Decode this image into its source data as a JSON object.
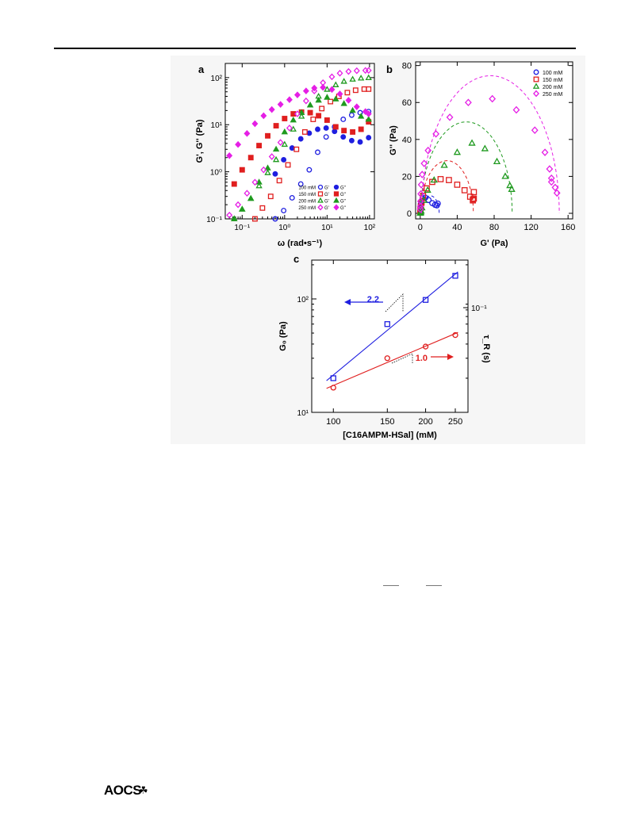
{
  "footer": {
    "publisher": "AOCS",
    "publisher_mark": "☘"
  },
  "colors": {
    "100 mM": "#1f1fe0",
    "150 mM": "#e01f1f",
    "200 mM": "#1f9a1f",
    "250 mM": "#e51fe5"
  },
  "chart_data": [
    {
      "panel_label": "a",
      "type": "scatter",
      "xlabel": "ω (rad•s⁻¹)",
      "ylabel": "G', G'' (Pa)",
      "xscale": "log",
      "yscale": "log",
      "xlim": [
        0.04,
        130
      ],
      "ylim": [
        0.1,
        200
      ],
      "xticks": [
        "10⁻¹",
        "10⁰",
        "10¹",
        "10²"
      ],
      "yticks": [
        "10⁻¹",
        "10⁰",
        "10¹",
        "10²"
      ],
      "legend_placement": "bottom-right",
      "legend_headers": [
        "",
        "G'",
        "G''"
      ],
      "series": [
        {
          "name": "100 mM",
          "color": "#1f1fe0",
          "gprime": {
            "x": [
              0.6,
              0.95,
              1.5,
              2.4,
              3.8,
              6,
              9.5,
              15,
              24,
              38,
              60,
              95
            ],
            "y": [
              0.1,
              0.15,
              0.28,
              0.55,
              1.1,
              2.6,
              5.5,
              9,
              13,
              16,
              18,
              19
            ]
          },
          "gdprime": {
            "x": [
              0.6,
              0.95,
              1.5,
              2.4,
              3.8,
              6,
              9.5,
              15,
              24,
              38,
              60,
              95
            ],
            "y": [
              0.9,
              1.8,
              3.2,
              5,
              6.6,
              8,
              8.5,
              7.2,
              5.5,
              4.6,
              4.3,
              5.3
            ]
          }
        },
        {
          "name": "150 mM",
          "color": "#e01f1f",
          "gprime": {
            "x": [
              0.2,
              0.3,
              0.47,
              0.75,
              1.2,
              1.9,
              3,
              4.7,
              7.5,
              12,
              19,
              30,
              47,
              75,
              95
            ],
            "y": [
              0.1,
              0.17,
              0.3,
              0.65,
              1.4,
              3,
              7,
              13,
              22,
              31,
              40,
              48,
              54,
              57,
              57
            ]
          },
          "gdprime": {
            "x": [
              0.065,
              0.1,
              0.16,
              0.25,
              0.4,
              0.63,
              1,
              1.6,
              2.5,
              4,
              6.3,
              10,
              16,
              25,
              40,
              63,
              95
            ],
            "y": [
              0.55,
              1.1,
              2,
              3.6,
              5.8,
              9.5,
              13.5,
              17,
              18.5,
              18,
              15.5,
              12.5,
              9,
              7.5,
              7,
              8,
              11.5
            ]
          }
        },
        {
          "name": "200 mM",
          "color": "#1f9a1f",
          "gprime": {
            "x": [
              0.065,
              0.1,
              0.16,
              0.25,
              0.4,
              0.63,
              1,
              1.6,
              2.5,
              4,
              6.3,
              10,
              16,
              25,
              40,
              63,
              95
            ],
            "y": [
              0.1,
              0.16,
              0.27,
              0.5,
              0.95,
              1.8,
              3.8,
              8,
              15,
              26,
              40,
              56,
              70,
              83,
              92,
              97,
              99
            ]
          },
          "gdprime": {
            "x": [
              0.065,
              0.1,
              0.16,
              0.25,
              0.4,
              0.63,
              1,
              1.6,
              2.5,
              4,
              6.3,
              10,
              16,
              25,
              40,
              63,
              95
            ],
            "y": [
              0.1,
              0.16,
              0.27,
              0.6,
              1.2,
              3,
              7,
              12.5,
              18,
              26,
              33,
              38,
              35,
              28,
              20,
              15,
              13
            ]
          }
        },
        {
          "name": "250 mM",
          "color": "#e51fe5",
          "gprime": {
            "x": [
              0.05,
              0.08,
              0.13,
              0.2,
              0.32,
              0.5,
              0.8,
              1.3,
              2,
              3.2,
              5,
              8,
              13,
              20,
              32,
              50,
              80,
              95
            ],
            "y": [
              0.12,
              0.2,
              0.35,
              0.6,
              1.1,
              2.1,
              4.2,
              8.5,
              17,
              32,
              52,
              78,
              104,
              124,
              135,
              140,
              142,
              142
            ]
          },
          "gdprime": {
            "x": [
              0.05,
              0.08,
              0.13,
              0.2,
              0.32,
              0.5,
              0.8,
              1.3,
              2,
              3.2,
              5,
              8,
              13,
              20,
              32,
              50,
              80,
              95
            ],
            "y": [
              2.2,
              3.8,
              6.5,
              10.5,
              15.5,
              21,
              27,
              34,
              43,
              52,
              60,
              62,
              56,
              45,
              33,
              24,
              19,
              17
            ]
          }
        }
      ]
    },
    {
      "panel_label": "b",
      "type": "scatter",
      "xlabel": "G' (Pa)",
      "ylabel": "G'' (Pa)",
      "xlim": [
        -5,
        165
      ],
      "ylim": [
        -3,
        82
      ],
      "xticks": [
        0,
        40,
        80,
        120,
        160
      ],
      "yticks": [
        0,
        20,
        40,
        60,
        80
      ],
      "legend_placement": "top-right",
      "series": [
        {
          "name": "100 mM",
          "color": "#1f1fe0",
          "marker": "circle",
          "fit_center": 11,
          "fit_radius": 9.5,
          "points": [
            [
              0.1,
              0.9
            ],
            [
              0.15,
              1.8
            ],
            [
              0.3,
              3.2
            ],
            [
              0.6,
              5
            ],
            [
              1.2,
              6.6
            ],
            [
              2.6,
              8
            ],
            [
              5.5,
              8.5
            ],
            [
              9,
              7.2
            ],
            [
              13,
              5.5
            ],
            [
              16,
              4.6
            ],
            [
              18,
              4.3
            ],
            [
              19,
              5.3
            ]
          ]
        },
        {
          "name": "150 mM",
          "color": "#e01f1f",
          "marker": "square",
          "fit_center": 29,
          "fit_radius": 28.5,
          "points": [
            [
              0.1,
              0.55
            ],
            [
              0.2,
              1.1
            ],
            [
              0.3,
              2
            ],
            [
              0.65,
              3.6
            ],
            [
              1.4,
              5.8
            ],
            [
              3,
              9.5
            ],
            [
              7,
              13.5
            ],
            [
              13,
              17
            ],
            [
              22,
              18.5
            ],
            [
              31,
              18
            ],
            [
              40,
              15.5
            ],
            [
              48,
              12.5
            ],
            [
              54,
              9
            ],
            [
              57,
              7.5
            ],
            [
              57,
              7
            ],
            [
              58,
              8
            ],
            [
              58,
              11.5
            ]
          ]
        },
        {
          "name": "200 mM",
          "color": "#1f9a1f",
          "marker": "triangle",
          "fit_center": 50,
          "fit_radius": 49.5,
          "points": [
            [
              0.1,
              0.1
            ],
            [
              0.16,
              0.16
            ],
            [
              0.27,
              0.27
            ],
            [
              0.5,
              0.6
            ],
            [
              0.95,
              1.2
            ],
            [
              1.8,
              3
            ],
            [
              3.8,
              7
            ],
            [
              8,
              12.5
            ],
            [
              15,
              18
            ],
            [
              26,
              26
            ],
            [
              40,
              33
            ],
            [
              56,
              38
            ],
            [
              70,
              35
            ],
            [
              83,
              28
            ],
            [
              92,
              20
            ],
            [
              97,
              15
            ],
            [
              99,
              13
            ]
          ]
        },
        {
          "name": "250 mM",
          "color": "#e51fe5",
          "marker": "diamond",
          "fit_center": 76,
          "fit_radius": 74.5,
          "points": [
            [
              0.12,
              2.2
            ],
            [
              0.2,
              3.8
            ],
            [
              0.35,
              6.5
            ],
            [
              0.6,
              10.5
            ],
            [
              1.1,
              15.5
            ],
            [
              2.1,
              21
            ],
            [
              4.2,
              27
            ],
            [
              8.5,
              34
            ],
            [
              17,
              43
            ],
            [
              32,
              52
            ],
            [
              52,
              60
            ],
            [
              78,
              62
            ],
            [
              104,
              56
            ],
            [
              124,
              45
            ],
            [
              135,
              33
            ],
            [
              140,
              24
            ],
            [
              142,
              19
            ],
            [
              142,
              17
            ],
            [
              146,
              14
            ],
            [
              148,
              11
            ]
          ]
        }
      ]
    },
    {
      "panel_label": "c",
      "type": "scatter",
      "xlabel": "[C16AMPM-HSal] (mM)",
      "ylabel": "G₀ (Pa)",
      "y2label": "τ_R (s)",
      "xscale": "log",
      "yscale": "log",
      "xlim": [
        85,
        275
      ],
      "ylim": [
        10,
        220
      ],
      "xticks": [
        100,
        150,
        200,
        250
      ],
      "yticks": [
        "10¹",
        "10²"
      ],
      "y2ticks": [
        "10⁻¹"
      ],
      "series": [
        {
          "name": "G₀",
          "color": "#1f1fe0",
          "marker": "square",
          "axis": "left",
          "x": [
            100,
            150,
            200,
            250
          ],
          "y": [
            20,
            60,
            98,
            160
          ],
          "slope_label": "2.2"
        },
        {
          "name": "τR",
          "color": "#e01f1f",
          "marker": "circle",
          "axis": "right",
          "x": [
            100,
            150,
            200,
            250
          ],
          "y": [
            16.5,
            30,
            38,
            48
          ],
          "slope_label": "1.0"
        }
      ]
    }
  ]
}
